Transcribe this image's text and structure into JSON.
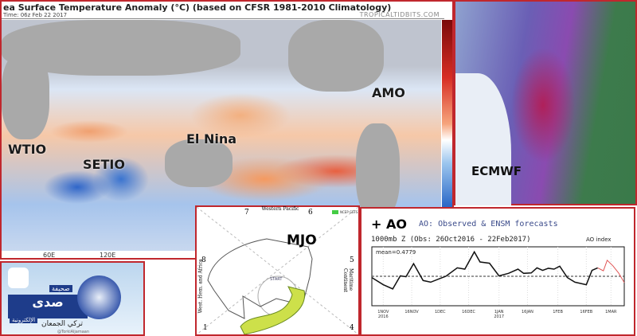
{
  "sst": {
    "title": "ea Surface Temperature Anomaly (°C) (based on CFSR 1981-2010 Climatology)",
    "time": "Time: 06z Feb 22 2017",
    "brand": "TROPICALTIDBITS.COM",
    "labels": {
      "wtio": "WTIO",
      "setio": "SETIO",
      "elnina": "El Nina",
      "amo": "AMO"
    },
    "lon_ticks": [
      "60E",
      "120E"
    ],
    "colors": {
      "warm": "#d72d24",
      "cool": "#2f6cc9",
      "land": "#a9a9a9"
    }
  },
  "ecmwf": {
    "label": "ECMWF"
  },
  "mjo": {
    "label": "MJO",
    "phases": [
      "7",
      "6",
      "5",
      "4",
      "1",
      "8"
    ],
    "region_top": "Western Pacific",
    "region_left": "West. Hem. and Africa",
    "region_right": "Maritime Continent",
    "start": "START",
    "legend": "NCEP GEFS"
  },
  "ao": {
    "tag": "+ AO",
    "title": "AO: Observed & ENSM forecasts",
    "subtitle": "1000mb Z (Obs: 26Oct2016 - 22Feb2017)",
    "index_label": "AO index",
    "mean": "mean=0.4779"
  },
  "chart_data": {
    "type": "line",
    "title": "AO: Observed & ENSM forecasts",
    "ylabel": "AO index",
    "ylim": [
      -7,
      7
    ],
    "grid": true,
    "x_ticks": [
      [
        "2016-11-01",
        "1NOV",
        "2016"
      ],
      [
        "2016-11-16",
        "16NOV",
        ""
      ],
      [
        "2016-12-01",
        "1DEC",
        ""
      ],
      [
        "2016-12-16",
        "16DEC",
        ""
      ],
      [
        "2017-01-01",
        "1JAN",
        "2017"
      ],
      [
        "2017-01-16",
        "16JAN",
        ""
      ],
      [
        "2017-02-01",
        "1FEB",
        ""
      ],
      [
        "2017-02-16",
        "16FEB",
        ""
      ],
      [
        "2017-03-01",
        "1MAR",
        ""
      ]
    ],
    "xlim": [
      "2016-10-26",
      "2017-03-08"
    ],
    "series": [
      {
        "name": "Observed",
        "color": "#111111",
        "points": [
          [
            "2016-10-26",
            -0.3
          ],
          [
            "2016-11-01",
            -2
          ],
          [
            "2016-11-06",
            -3
          ],
          [
            "2016-11-10",
            0.1
          ],
          [
            "2016-11-13",
            -0.1
          ],
          [
            "2016-11-17",
            3
          ],
          [
            "2016-11-22",
            -1
          ],
          [
            "2016-11-26",
            -1.4
          ],
          [
            "2016-12-01",
            -0.5
          ],
          [
            "2016-12-04",
            0
          ],
          [
            "2016-12-10",
            2
          ],
          [
            "2016-12-14",
            1.7
          ],
          [
            "2016-12-19",
            5.8
          ],
          [
            "2016-12-22",
            3.4
          ],
          [
            "2016-12-27",
            3.1
          ],
          [
            "2017-01-01",
            0.1
          ],
          [
            "2017-01-06",
            0.7
          ],
          [
            "2017-01-11",
            1.7
          ],
          [
            "2017-01-14",
            0.7
          ],
          [
            "2017-01-18",
            0.8
          ],
          [
            "2017-01-21",
            2
          ],
          [
            "2017-01-24",
            1.4
          ],
          [
            "2017-01-27",
            1.9
          ],
          [
            "2017-01-30",
            1.7
          ],
          [
            "2017-02-02",
            2.4
          ],
          [
            "2017-02-06",
            -0.3
          ],
          [
            "2017-02-10",
            -1.4
          ],
          [
            "2017-02-13",
            -1.7
          ],
          [
            "2017-02-16",
            -2
          ],
          [
            "2017-02-19",
            1.4
          ],
          [
            "2017-02-22",
            2
          ]
        ]
      },
      {
        "name": "Forecast",
        "color": "#e05555",
        "points": [
          [
            "2017-02-22",
            2
          ],
          [
            "2017-02-25",
            1.3
          ],
          [
            "2017-02-27",
            3.8
          ],
          [
            "2017-03-02",
            2.5
          ],
          [
            "2017-03-05",
            0.8
          ],
          [
            "2017-03-08",
            -1.5
          ]
        ]
      }
    ]
  },
  "logo": {
    "name_ar": "صدى",
    "sub_ar": "صحيفة",
    "e_ar": "الإلكترونية",
    "person_ar": "تركي الجمعان",
    "handle": "@TorkiAljamaan"
  }
}
